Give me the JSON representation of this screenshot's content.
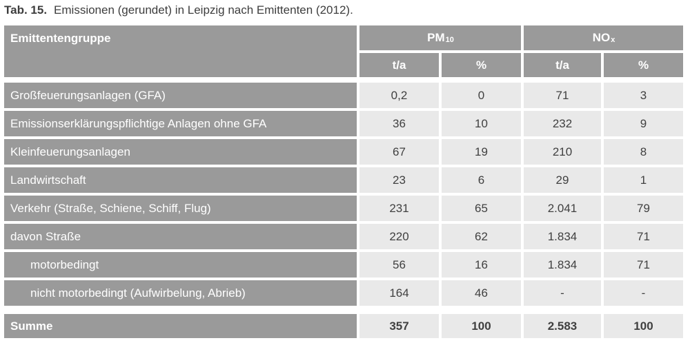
{
  "title": {
    "label": "Tab. 15.",
    "text": "Emissionen (gerundet) in Leipzig nach Emittenten (2012)."
  },
  "table": {
    "header": {
      "col1": "Emittentengruppe",
      "groups": [
        {
          "base": "PM",
          "sub": "10"
        },
        {
          "base": "NO",
          "sub": "x"
        }
      ],
      "units": [
        "t/a",
        "%",
        "t/a",
        "%"
      ]
    },
    "rows": [
      {
        "label": "Großfeuerungsanlagen (GFA)",
        "values": [
          "0,2",
          "0",
          "71",
          "3"
        ]
      },
      {
        "label": "Emissionserklärungspflichtige Anlagen ohne GFA",
        "values": [
          "36",
          "10",
          "232",
          "9"
        ]
      },
      {
        "label": "Kleinfeuerungsanlagen",
        "values": [
          "67",
          "19",
          "210",
          "8"
        ]
      },
      {
        "label": "Landwirtschaft",
        "values": [
          "23",
          "6",
          "29",
          "1"
        ]
      },
      {
        "label": "Verkehr (Straße, Schiene, Schiff, Flug)",
        "values": [
          "231",
          "65",
          "2.041",
          "79"
        ]
      },
      {
        "label": "davon Straße",
        "values": [
          "220",
          "62",
          "1.834",
          "71"
        ]
      },
      {
        "label": "motorbedingt",
        "values": [
          "56",
          "16",
          "1.834",
          "71"
        ]
      },
      {
        "label": "nicht motorbedingt (Aufwirbelung, Abrieb)",
        "values": [
          "164",
          "46",
          "-",
          "-"
        ]
      }
    ],
    "summary": {
      "label": "Summe",
      "values": [
        "357",
        "100",
        "2.583",
        "100"
      ]
    }
  },
  "colors": {
    "header_gray": "#9a9a9a",
    "cell_gray": "#e9e9e9",
    "header_text": "#ffffff",
    "cell_text": "#404040",
    "title_text": "#3d3d3d",
    "background": "#ffffff"
  }
}
